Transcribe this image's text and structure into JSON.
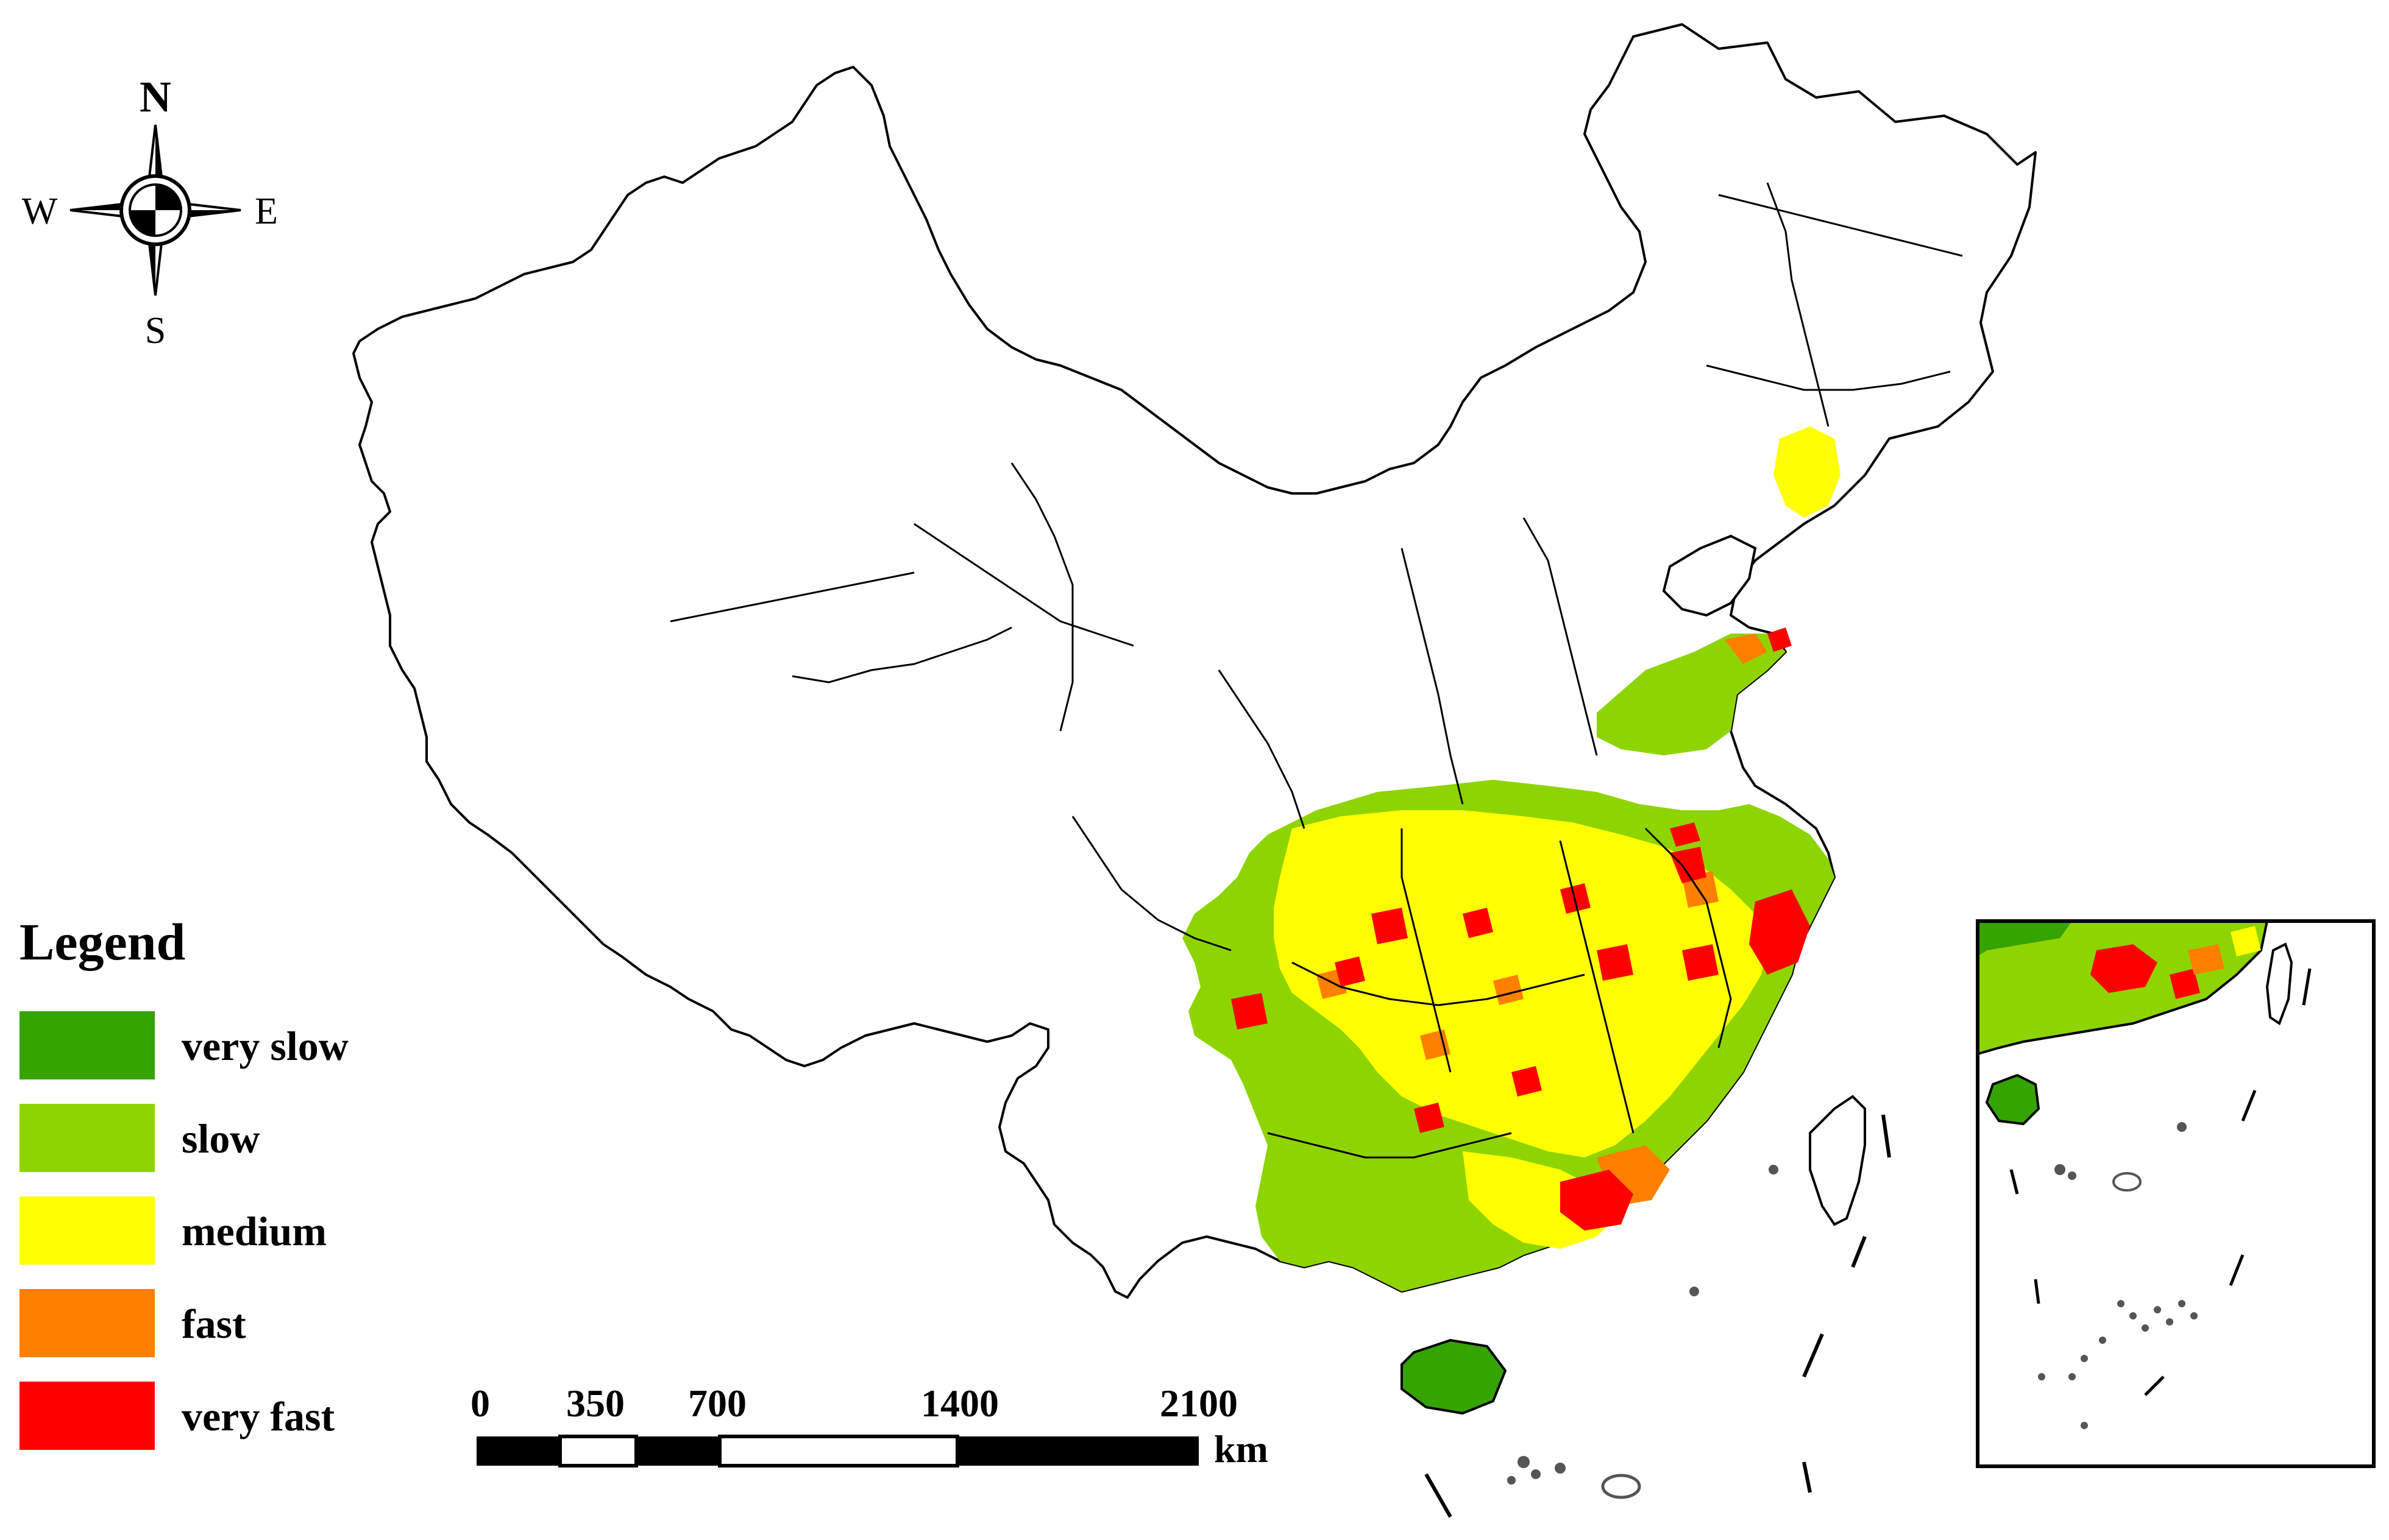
{
  "compass": {
    "north": "N",
    "south": "S",
    "east": "E",
    "west": "W"
  },
  "legend": {
    "title": "Legend",
    "items": [
      {
        "label": "very slow",
        "color": "#35a300"
      },
      {
        "label": "slow",
        "color": "#8ed400"
      },
      {
        "label": "medium",
        "color": "#ffff00"
      },
      {
        "label": "fast",
        "color": "#ff7f00"
      },
      {
        "label": "very fast",
        "color": "#ff0000"
      }
    ]
  },
  "scale_bar": {
    "ticks": [
      "0",
      "350",
      "700",
      "1400",
      "2100"
    ],
    "unit": "km"
  },
  "colors": {
    "very_slow": "#35a300",
    "slow": "#8ed400",
    "medium": "#ffff00",
    "fast": "#ff7f00",
    "very_fast": "#ff0000",
    "island": "#555555"
  }
}
